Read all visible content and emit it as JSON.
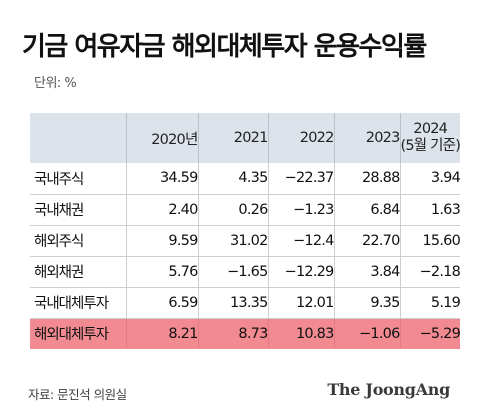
{
  "title": "기금 여유자금 해외대체투자 운용수익률",
  "unit": "단위: %",
  "source": "자료: 문진석 의원실",
  "brand": "The JoongAng",
  "colors": {
    "header_bg": "#dde3ea",
    "highlight_bg": "#f28a92"
  },
  "chart_data": {
    "type": "table",
    "columns": [
      "2020년",
      "2021",
      "2022",
      "2023",
      "2024 (5월 기준)"
    ],
    "column_lines": [
      [
        "2020년"
      ],
      [
        "2021"
      ],
      [
        "2022"
      ],
      [
        "2023"
      ],
      [
        "2024",
        "(5월 기준)"
      ]
    ],
    "rows": [
      {
        "label": "국내주식",
        "values": [
          "34.59",
          "4.35",
          "−22.37",
          "28.88",
          "3.94"
        ]
      },
      {
        "label": "국내채권",
        "values": [
          "2.40",
          "0.26",
          "−1.23",
          "6.84",
          "1.63"
        ]
      },
      {
        "label": "해외주식",
        "values": [
          "9.59",
          "31.02",
          "−12.4",
          "22.70",
          "15.60"
        ]
      },
      {
        "label": "해외채권",
        "values": [
          "5.76",
          "−1.65",
          "−12.29",
          "3.84",
          "−2.18"
        ]
      },
      {
        "label": "국내대체투자",
        "values": [
          "6.59",
          "13.35",
          "12.01",
          "9.35",
          "5.19"
        ]
      },
      {
        "label": "해외대체투자",
        "values": [
          "8.21",
          "8.73",
          "10.83",
          "−1.06",
          "−5.29"
        ],
        "highlight": true
      }
    ]
  }
}
